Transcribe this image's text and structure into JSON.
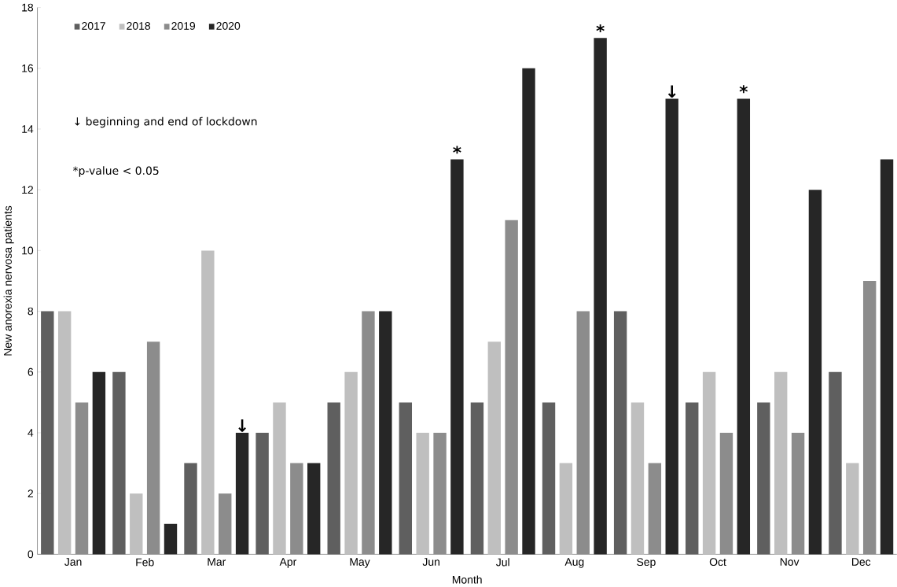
{
  "chart_data": {
    "type": "bar",
    "xlabel": "Month",
    "ylabel": "New anorexia nervosa patients",
    "categories": [
      "Jan",
      "Feb",
      "Mar",
      "Apr",
      "May",
      "Jun",
      "Jul",
      "Aug",
      "Sep",
      "Oct",
      "Nov",
      "Dec"
    ],
    "series": [
      {
        "name": "2017",
        "color": "#5f5f5f",
        "values": [
          8,
          6,
          3,
          4,
          5,
          5,
          5,
          5,
          8,
          5,
          5,
          6
        ]
      },
      {
        "name": "2018",
        "color": "#bfbfbf",
        "values": [
          8,
          2,
          10,
          5,
          6,
          4,
          7,
          3,
          5,
          6,
          6,
          3
        ]
      },
      {
        "name": "2019",
        "color": "#8c8c8c",
        "values": [
          5,
          7,
          2,
          3,
          8,
          4,
          11,
          8,
          3,
          4,
          4,
          9
        ]
      },
      {
        "name": "2020",
        "color": "#262626",
        "values": [
          6,
          1,
          4,
          3,
          8,
          13,
          16,
          17,
          15,
          15,
          12,
          13
        ]
      }
    ],
    "ylim": [
      0,
      18
    ],
    "yticks": [
      0,
      2,
      4,
      6,
      8,
      10,
      12,
      14,
      16,
      18
    ],
    "grid": false,
    "legend": "top left",
    "annotations": [
      "↓ beginning and end of lockdown",
      "*p-value < 0.05",
      "↓",
      "↓",
      "*",
      "*",
      "*"
    ]
  }
}
